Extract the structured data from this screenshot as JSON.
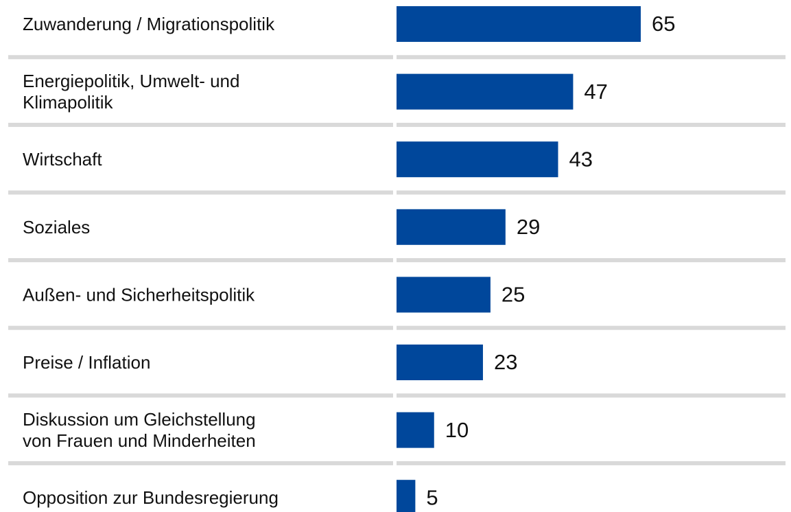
{
  "chart_data": {
    "type": "bar",
    "orientation": "horizontal",
    "categories": [
      "Zuwanderung / Migrationspolitik",
      "Energiepolitik, Umwelt- und\nKlimapolitik",
      "Wirtschaft",
      "Soziales",
      "Außen- und Sicherheitspolitik",
      "Preise / Inflation",
      "Diskussion um Gleichstellung\nvon Frauen und Minderheiten",
      "Opposition zur Bundesregierung"
    ],
    "values": [
      65,
      47,
      43,
      29,
      25,
      23,
      10,
      5
    ],
    "color": "#00479b"
  }
}
